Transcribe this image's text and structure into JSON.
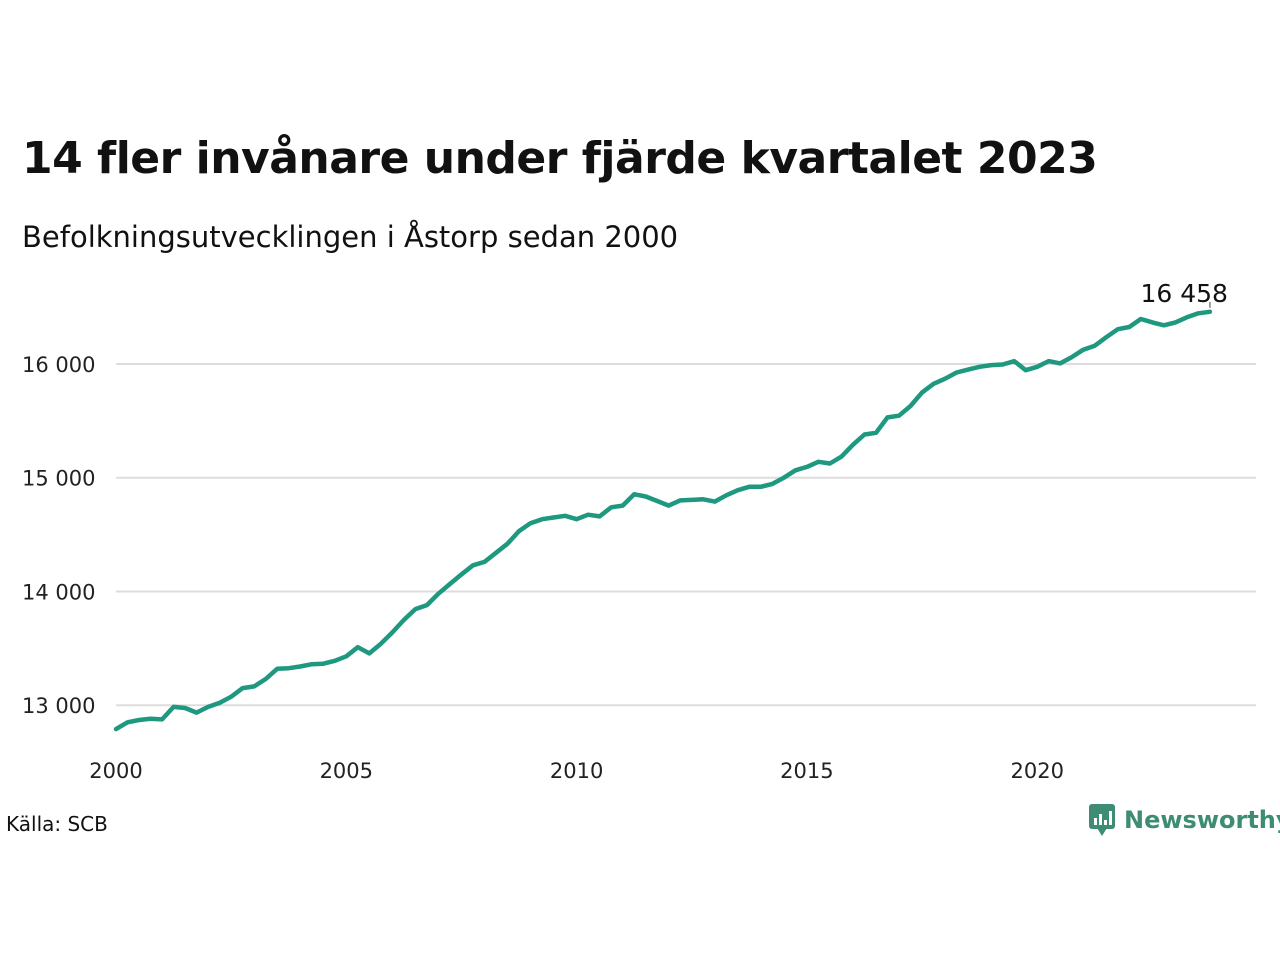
{
  "title": "14 fler invånare under fjärde kvartalet 2023",
  "subtitle": "Befolkningsutvecklingen i Åstorp sedan 2000",
  "source": "Källa: SCB",
  "brand": {
    "name": "Newsworthy",
    "icon": "newsworthy-chart-bubble-icon",
    "color": "#3d8c73"
  },
  "colors": {
    "line": "#1f9880",
    "grid": "#dddddd"
  },
  "chart_data": {
    "type": "line",
    "title": "14 fler invånare under fjärde kvartalet 2023",
    "subtitle": "Befolkningsutvecklingen i Åstorp sedan 2000",
    "xlabel": "",
    "ylabel": "",
    "xlim": [
      2000,
      2024.75
    ],
    "ylim": [
      12650,
      16650
    ],
    "grid": true,
    "xticks": [
      2000,
      2005,
      2010,
      2015,
      2020
    ],
    "xtick_labels": [
      "2000",
      "2005",
      "2010",
      "2015",
      "2020"
    ],
    "yticks": [
      13000,
      14000,
      15000,
      16000
    ],
    "ytick_labels": [
      "13 000",
      "14 000",
      "15 000",
      "16 000"
    ],
    "end_label": "16 458",
    "series": [
      {
        "name": "",
        "x": [
          2000.0,
          2000.25,
          2000.5,
          2000.75,
          2001.0,
          2001.25,
          2001.5,
          2001.75,
          2002.0,
          2002.25,
          2002.5,
          2002.75,
          2003.0,
          2003.25,
          2003.5,
          2003.75,
          2004.0,
          2004.25,
          2004.5,
          2004.75,
          2005.0,
          2005.25,
          2005.5,
          2005.75,
          2006.0,
          2006.25,
          2006.5,
          2006.75,
          2007.0,
          2007.25,
          2007.5,
          2007.75,
          2008.0,
          2008.25,
          2008.5,
          2008.75,
          2009.0,
          2009.25,
          2009.5,
          2009.75,
          2010.0,
          2010.25,
          2010.5,
          2010.75,
          2011.0,
          2011.25,
          2011.5,
          2011.75,
          2012.0,
          2012.25,
          2012.5,
          2012.75,
          2013.0,
          2013.25,
          2013.5,
          2013.75,
          2014.0,
          2014.25,
          2014.5,
          2014.75,
          2015.0,
          2015.25,
          2015.5,
          2015.75,
          2016.0,
          2016.25,
          2016.5,
          2016.75,
          2017.0,
          2017.25,
          2017.5,
          2017.75,
          2018.0,
          2018.25,
          2018.5,
          2018.75,
          2019.0,
          2019.25,
          2019.5,
          2019.75,
          2020.0,
          2020.25,
          2020.5,
          2020.75,
          2021.0,
          2021.25,
          2021.5,
          2021.75,
          2022.0,
          2022.25,
          2022.5,
          2022.75,
          2023.0,
          2023.25,
          2023.5,
          2023.75
        ],
        "values": [
          12790,
          12850,
          12870,
          12880,
          12875,
          12985,
          12975,
          12935,
          12985,
          13020,
          13075,
          13150,
          13165,
          13230,
          13320,
          13325,
          13340,
          13360,
          13365,
          13390,
          13430,
          13510,
          13455,
          13540,
          13640,
          13750,
          13845,
          13880,
          13980,
          14065,
          14150,
          14230,
          14260,
          14340,
          14420,
          14530,
          14600,
          14635,
          14650,
          14665,
          14635,
          14675,
          14660,
          14740,
          14755,
          14855,
          14835,
          14795,
          14755,
          14800,
          14805,
          14810,
          14790,
          14845,
          14890,
          14920,
          14920,
          14945,
          15000,
          15065,
          15095,
          15140,
          15125,
          15185,
          15290,
          15380,
          15395,
          15530,
          15545,
          15630,
          15750,
          15825,
          15870,
          15925,
          15950,
          15975,
          15990,
          15995,
          16025,
          15945,
          15975,
          16025,
          16005,
          16060,
          16125,
          16160,
          16235,
          16305,
          16325,
          16395,
          16365,
          16340,
          16365,
          16410,
          16445,
          16458
        ]
      }
    ]
  }
}
